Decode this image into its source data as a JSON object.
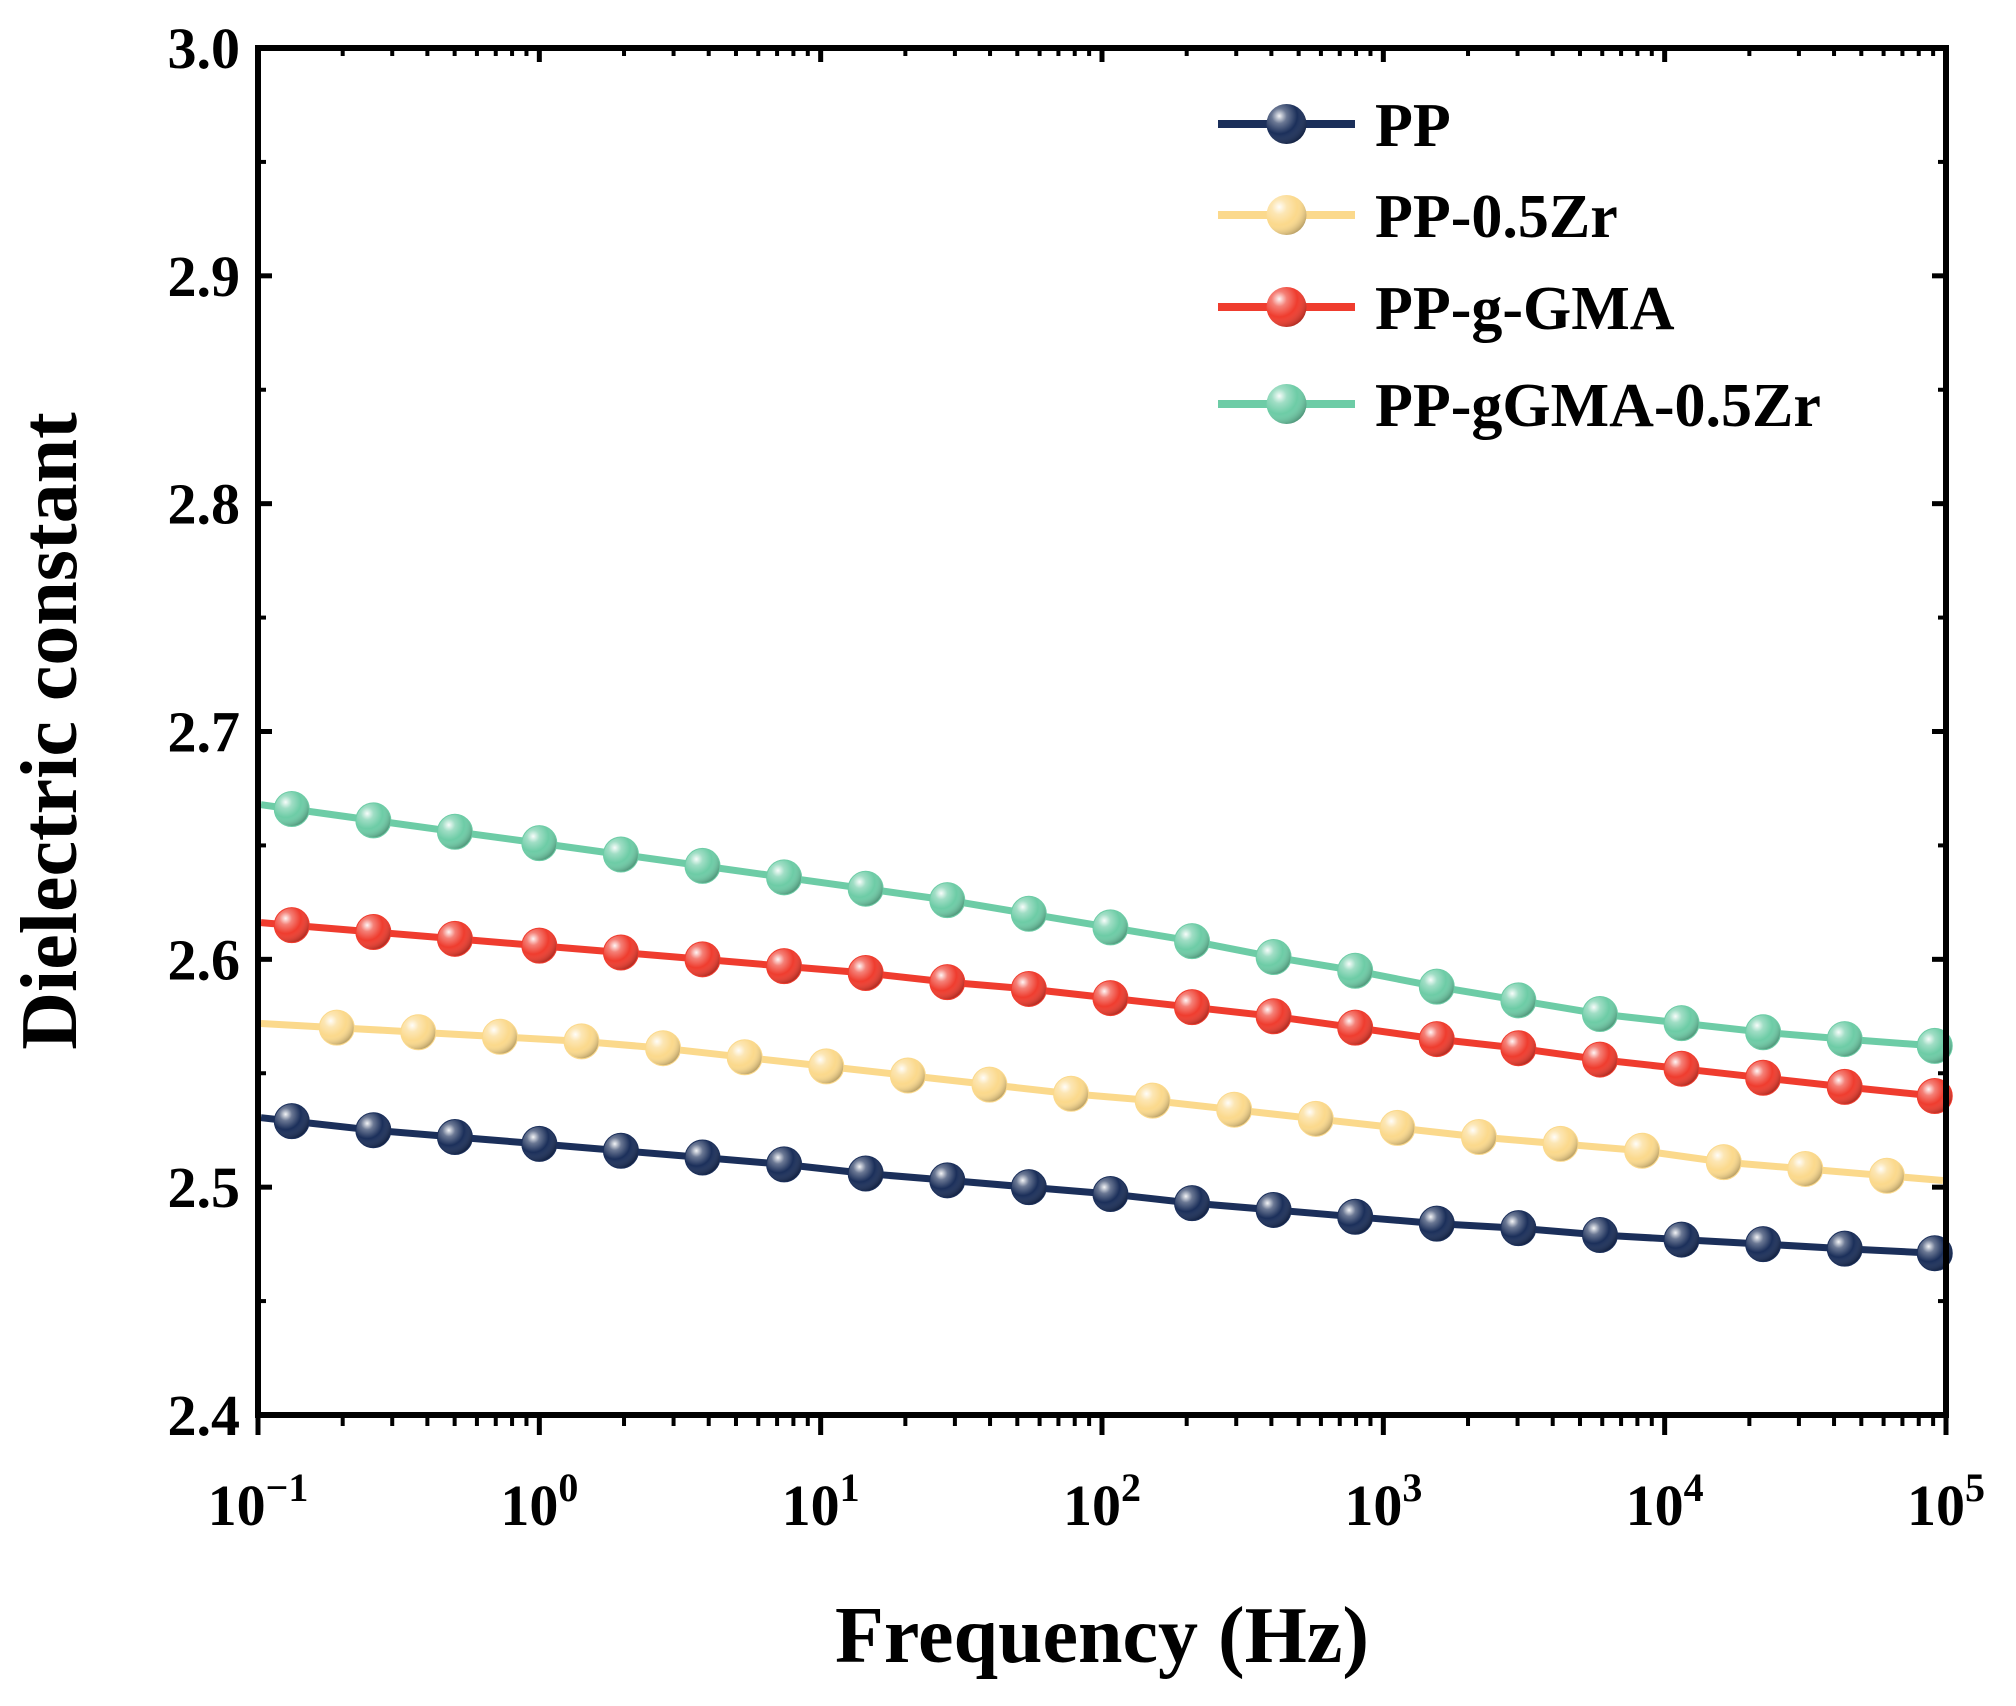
{
  "chart_data": {
    "type": "line",
    "xlabel": "Frequency (Hz)",
    "ylabel": "Dielectric constant",
    "xscale": "log",
    "xlim_exponents": [
      -1,
      5
    ],
    "ylim": [
      2.4,
      3.0
    ],
    "yticks": [
      "2.4",
      "2.5",
      "2.6",
      "2.7",
      "2.8",
      "2.9",
      "3.0"
    ],
    "xticks": [
      {
        "base": "10",
        "exp": "−1"
      },
      {
        "base": "10",
        "exp": "0"
      },
      {
        "base": "10",
        "exp": "1"
      },
      {
        "base": "10",
        "exp": "2"
      },
      {
        "base": "10",
        "exp": "3"
      },
      {
        "base": "10",
        "exp": "4"
      },
      {
        "base": "10",
        "exp": "5"
      }
    ],
    "legend_position": "top-right",
    "series": [
      {
        "name": "PP",
        "color": "#1b2f5a",
        "log_x": [
          -0.88,
          -0.59,
          -0.3,
          0.0,
          0.29,
          0.58,
          0.87,
          1.16,
          1.45,
          1.74,
          2.03,
          2.32,
          2.61,
          2.9,
          3.19,
          3.48,
          3.77,
          4.06,
          4.35,
          4.64,
          4.96
        ],
        "y": [
          2.529,
          2.525,
          2.522,
          2.519,
          2.516,
          2.513,
          2.51,
          2.506,
          2.503,
          2.5,
          2.497,
          2.493,
          2.49,
          2.487,
          2.484,
          2.482,
          2.479,
          2.477,
          2.475,
          2.473,
          2.471
        ]
      },
      {
        "name": "PP-0.5Zr",
        "color": "#fbd98c",
        "log_x": [
          -0.72,
          -0.43,
          -0.14,
          0.15,
          0.44,
          0.73,
          1.02,
          1.31,
          1.6,
          1.89,
          2.18,
          2.47,
          2.76,
          3.05,
          3.34,
          3.63,
          3.92,
          4.21,
          4.5,
          4.79
        ],
        "y": [
          2.57,
          2.568,
          2.566,
          2.564,
          2.561,
          2.557,
          2.553,
          2.549,
          2.545,
          2.541,
          2.538,
          2.534,
          2.53,
          2.526,
          2.522,
          2.519,
          2.516,
          2.511,
          2.508,
          2.505
        ]
      },
      {
        "name": "PP-g-GMA",
        "color": "#ef3c2e",
        "log_x": [
          -0.88,
          -0.59,
          -0.3,
          0.0,
          0.29,
          0.58,
          0.87,
          1.16,
          1.45,
          1.74,
          2.03,
          2.32,
          2.61,
          2.9,
          3.19,
          3.48,
          3.77,
          4.06,
          4.35,
          4.64,
          4.96
        ],
        "y": [
          2.615,
          2.612,
          2.609,
          2.606,
          2.603,
          2.6,
          2.597,
          2.594,
          2.59,
          2.587,
          2.583,
          2.579,
          2.575,
          2.57,
          2.565,
          2.561,
          2.556,
          2.552,
          2.548,
          2.544,
          2.54
        ]
      },
      {
        "name": "PP-gGMA-0.5Zr",
        "color": "#6dcca6",
        "log_x": [
          -0.88,
          -0.59,
          -0.3,
          0.0,
          0.29,
          0.58,
          0.87,
          1.16,
          1.45,
          1.74,
          2.03,
          2.32,
          2.61,
          2.9,
          3.19,
          3.48,
          3.77,
          4.06,
          4.35,
          4.64,
          4.96
        ],
        "y": [
          2.666,
          2.661,
          2.656,
          2.651,
          2.646,
          2.641,
          2.636,
          2.631,
          2.626,
          2.62,
          2.614,
          2.608,
          2.601,
          2.595,
          2.588,
          2.582,
          2.576,
          2.572,
          2.568,
          2.565,
          2.562
        ]
      }
    ]
  }
}
